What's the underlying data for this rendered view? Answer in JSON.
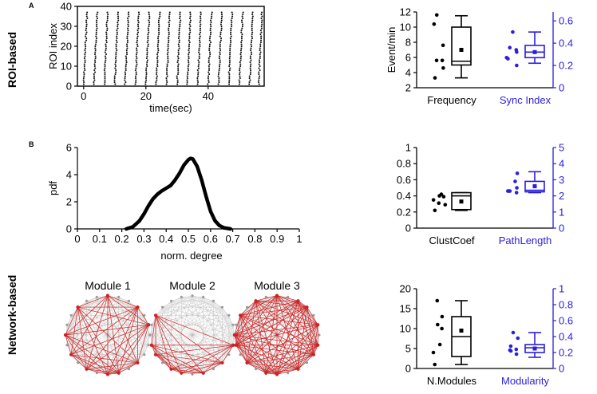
{
  "panel_labels": {
    "a": "A",
    "b": "B"
  },
  "row_labels": {
    "roi": "ROI-based",
    "network": "Network-based"
  },
  "colors": {
    "black": "#000000",
    "blue": "#2a1ee0",
    "red": "#cc2222",
    "grey": "#b4b4b4"
  },
  "chart_data": [
    {
      "id": "raster",
      "type": "scatter",
      "title": "",
      "xlabel": "time(sec)",
      "ylabel": "ROI index",
      "xlim": [
        -2,
        58
      ],
      "ylim": [
        0,
        40
      ],
      "xticks": [
        "0",
        "20",
        "40"
      ],
      "xtick_values": [
        0,
        20,
        40
      ],
      "yticks": [
        "0",
        "10",
        "20",
        "30",
        "40"
      ],
      "ytick_values": [
        0,
        10,
        20,
        30,
        40
      ],
      "event_times": [
        0,
        3.3,
        6.6,
        10,
        13.3,
        16.6,
        20,
        23.3,
        26.6,
        30,
        33.3,
        36.6,
        40,
        43.3,
        46.6,
        50,
        53.3,
        56.2
      ],
      "roi_count": 37,
      "sweep_width_sec": 1.1
    },
    {
      "id": "frequency_sync",
      "type": "box",
      "groups": [
        {
          "name": "Frequency",
          "axis": "left",
          "color": "#000000",
          "points": [
            11.6,
            10.4,
            7.6,
            5.6,
            5.6,
            4.6,
            3.3
          ],
          "box": {
            "q1": 5.0,
            "median": 5.5,
            "q3": 10.0,
            "whisker_low": 3.3,
            "whisker_high": 11.5,
            "mean": 7.0
          }
        },
        {
          "name": "Sync Index",
          "axis": "right",
          "color": "#2a1ee0",
          "points": [
            0.5,
            0.36,
            0.34,
            0.32,
            0.27,
            0.26,
            0.2
          ],
          "box": {
            "q1": 0.27,
            "median": 0.32,
            "q3": 0.38,
            "whisker_low": 0.22,
            "whisker_high": 0.5,
            "mean": 0.32
          }
        }
      ],
      "ylabel_left": "Event/min",
      "ylim_left": [
        2,
        12
      ],
      "yticks_left": [
        "2",
        "4",
        "6",
        "8",
        "10",
        "12"
      ],
      "ylim_right": [
        0,
        0.68
      ],
      "yticks_right": [
        "0",
        "0.2",
        "0.4",
        "0.6"
      ],
      "ytick_values_right": [
        0,
        0.2,
        0.4,
        0.6
      ]
    },
    {
      "id": "degree_pdf",
      "type": "line",
      "xlabel": "norm. degree",
      "ylabel": "pdf",
      "xlim": [
        0,
        1
      ],
      "ylim": [
        0,
        6
      ],
      "xticks": [
        "0",
        "0.1",
        "0.2",
        "0.3",
        "0.4",
        "0.5",
        "0.6",
        "0.7",
        "0.8",
        "0.9",
        "1"
      ],
      "yticks": [
        "0",
        "2",
        "4",
        "6"
      ],
      "ytick_values": [
        0,
        2,
        4,
        6
      ],
      "x": [
        0.22,
        0.25,
        0.28,
        0.3,
        0.32,
        0.34,
        0.36,
        0.38,
        0.4,
        0.42,
        0.44,
        0.46,
        0.48,
        0.5,
        0.51,
        0.52,
        0.54,
        0.56,
        0.58,
        0.6,
        0.62,
        0.64,
        0.66,
        0.69
      ],
      "y": [
        0.0,
        0.15,
        0.6,
        1.1,
        1.7,
        2.2,
        2.55,
        2.8,
        3.0,
        3.2,
        3.6,
        4.1,
        4.7,
        5.1,
        5.2,
        5.15,
        4.6,
        3.6,
        2.4,
        1.3,
        0.6,
        0.25,
        0.08,
        0.0
      ]
    },
    {
      "id": "clust_path",
      "type": "box",
      "groups": [
        {
          "name": "ClustCoef",
          "axis": "left",
          "color": "#000000",
          "points": [
            0.42,
            0.4,
            0.39,
            0.35,
            0.31,
            0.29,
            0.22
          ],
          "box": {
            "q1": 0.23,
            "median": 0.4,
            "q3": 0.44,
            "whisker_low": 0.22,
            "whisker_high": 0.44,
            "mean": 0.33
          }
        },
        {
          "name": "PathLength",
          "axis": "right",
          "color": "#2a1ee0",
          "points": [
            3.4,
            2.9,
            2.5,
            2.3,
            2.3,
            2.3,
            2.2
          ],
          "box": {
            "q1": 2.25,
            "median": 2.35,
            "q3": 2.9,
            "whisker_low": 2.2,
            "whisker_high": 3.5,
            "mean": 2.6
          }
        }
      ],
      "ylim_left": [
        0,
        1
      ],
      "yticks_left": [
        "0",
        "0.2",
        "0.4",
        "0.6",
        "0.8",
        "1"
      ],
      "ylim_right": [
        0,
        5
      ],
      "yticks_right": [
        "0",
        "1",
        "2",
        "3",
        "4",
        "5"
      ],
      "ytick_values_right": [
        0,
        1,
        2,
        3,
        4,
        5
      ]
    },
    {
      "id": "modules",
      "type": "box",
      "groups": [
        {
          "name": "N.Modules",
          "axis": "left",
          "color": "#000000",
          "points": [
            17,
            13,
            11,
            10,
            6,
            4,
            1
          ],
          "box": {
            "q1": 3,
            "median": 8,
            "q3": 13,
            "whisker_low": 1,
            "whisker_high": 17,
            "mean": 9.5
          }
        },
        {
          "name": "Modularity",
          "axis": "right",
          "color": "#2a1ee0",
          "points": [
            0.45,
            0.38,
            0.28,
            0.24,
            0.23,
            0.22,
            0.18
          ],
          "box": {
            "q1": 0.2,
            "median": 0.26,
            "q3": 0.3,
            "whisker_low": 0.14,
            "whisker_high": 0.45,
            "mean": 0.25
          }
        }
      ],
      "ylim_left": [
        0,
        20
      ],
      "yticks_left": [
        "0",
        "5",
        "10",
        "15",
        "20"
      ],
      "ylim_right": [
        0,
        1
      ],
      "yticks_right": [
        "0",
        "0.2",
        "0.4",
        "0.6",
        "0.8",
        "1"
      ],
      "ytick_values_right": [
        0,
        0.2,
        0.4,
        0.6,
        0.8,
        1.0
      ]
    }
  ],
  "networks": [
    {
      "title": "Module 1",
      "node_count": 24,
      "highlighted_nodes": [
        0,
        3,
        5,
        9,
        11,
        12,
        14,
        16,
        18,
        21
      ]
    },
    {
      "title": "Module 2",
      "node_count": 24,
      "highlighted_nodes": [
        7,
        9,
        11,
        13,
        14,
        16,
        17,
        20
      ]
    },
    {
      "title": "Module 3",
      "node_count": 24,
      "highlighted_nodes": [
        0,
        2,
        3,
        5,
        7,
        8,
        10,
        12,
        13,
        15,
        17,
        18,
        20,
        22
      ]
    }
  ]
}
